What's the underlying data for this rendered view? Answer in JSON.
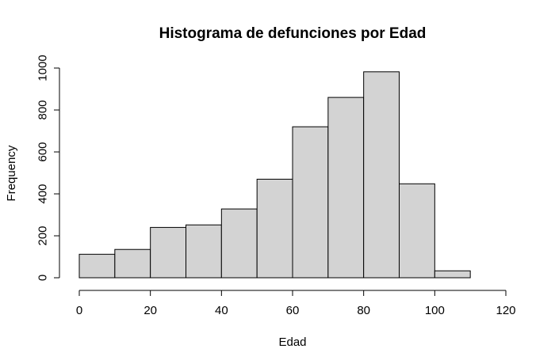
{
  "chart_data": {
    "type": "bar",
    "histogram": true,
    "title": "Histograma de defunciones por Edad",
    "xlabel": "Edad",
    "ylabel": "Frequency",
    "bin_edges": [
      0,
      10,
      20,
      30,
      40,
      50,
      60,
      70,
      80,
      90,
      100,
      110
    ],
    "values": [
      112,
      135,
      240,
      252,
      328,
      470,
      720,
      860,
      982,
      448,
      33
    ],
    "xlim": [
      0,
      120
    ],
    "ylim": [
      0,
      1000
    ],
    "x_ticks": [
      0,
      20,
      40,
      60,
      80,
      100,
      120
    ],
    "x_tick_labels": [
      "0",
      "20",
      "40",
      "60",
      "80",
      "100",
      "120"
    ],
    "y_ticks": [
      0,
      200,
      400,
      600,
      800,
      1000
    ],
    "y_tick_labels": [
      "0",
      "200",
      "400",
      "600",
      "800",
      "1000"
    ],
    "grid": false,
    "bar_color": "#d3d3d3",
    "edge_color": "#000000"
  }
}
